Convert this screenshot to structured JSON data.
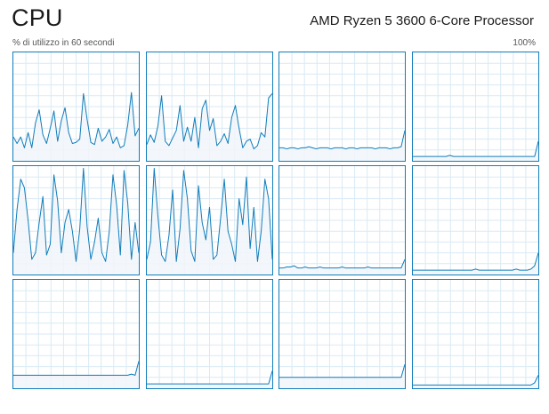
{
  "header": {
    "title": "CPU",
    "processor": "AMD Ryzen 5 3600 6-Core Processor",
    "utilization_label": "% di utilizzo in 60 secondi",
    "max_label": "100%"
  },
  "colors": {
    "line": "#117dbb",
    "fill": "#f1f6fa",
    "grid": "#d9eaf4",
    "border": "#117dbb"
  },
  "chart_data": {
    "type": "line",
    "layout": "grid",
    "grid_rows": 3,
    "grid_cols": 4,
    "ylim": [
      0,
      100
    ],
    "x_window_seconds": 60,
    "grid": true,
    "series": [
      {
        "values": [
          22,
          16,
          22,
          12,
          26,
          12,
          35,
          47,
          24,
          16,
          30,
          46,
          18,
          37,
          49,
          26,
          16,
          17,
          20,
          62,
          38,
          17,
          15,
          30,
          18,
          22,
          29,
          16,
          22,
          12,
          14,
          33,
          63,
          23,
          30
        ]
      },
      {
        "values": [
          15,
          24,
          17,
          32,
          60,
          18,
          14,
          21,
          28,
          51,
          18,
          31,
          18,
          40,
          12,
          48,
          56,
          28,
          39,
          14,
          18,
          25,
          16,
          40,
          51,
          30,
          12,
          18,
          20,
          11,
          14,
          26,
          22,
          58,
          62
        ]
      },
      {
        "values": [
          12,
          12,
          11,
          12,
          12,
          11,
          12,
          12,
          13,
          12,
          11,
          12,
          12,
          12,
          11,
          12,
          12,
          12,
          11,
          12,
          12,
          11,
          12,
          12,
          12,
          12,
          11,
          12,
          12,
          12,
          11,
          12,
          12,
          13,
          28
        ]
      },
      {
        "values": [
          4,
          4,
          4,
          4,
          4,
          4,
          4,
          4,
          4,
          4,
          5,
          4,
          4,
          4,
          4,
          4,
          4,
          4,
          4,
          4,
          4,
          4,
          4,
          4,
          4,
          4,
          4,
          4,
          4,
          4,
          4,
          4,
          4,
          4,
          18
        ]
      },
      {
        "values": [
          20,
          60,
          88,
          80,
          50,
          14,
          20,
          48,
          72,
          18,
          28,
          92,
          68,
          20,
          48,
          60,
          40,
          12,
          42,
          98,
          44,
          14,
          30,
          52,
          20,
          12,
          40,
          92,
          64,
          18,
          96,
          66,
          14,
          48,
          20
        ]
      },
      {
        "values": [
          14,
          30,
          98,
          54,
          18,
          12,
          36,
          78,
          12,
          42,
          96,
          70,
          22,
          12,
          82,
          48,
          32,
          62,
          14,
          18,
          52,
          88,
          40,
          28,
          12,
          70,
          46,
          90,
          24,
          62,
          12,
          40,
          88,
          70,
          14
        ]
      },
      {
        "values": [
          6,
          6,
          7,
          7,
          8,
          6,
          6,
          7,
          6,
          6,
          6,
          7,
          6,
          6,
          6,
          6,
          6,
          7,
          6,
          6,
          6,
          6,
          6,
          6,
          7,
          6,
          6,
          6,
          6,
          6,
          6,
          6,
          6,
          6,
          14
        ]
      },
      {
        "values": [
          4,
          4,
          4,
          4,
          4,
          4,
          4,
          4,
          4,
          4,
          4,
          4,
          4,
          4,
          4,
          4,
          4,
          5,
          4,
          4,
          4,
          4,
          4,
          4,
          4,
          4,
          4,
          4,
          5,
          4,
          4,
          4,
          5,
          8,
          20
        ]
      },
      {
        "values": [
          12,
          12,
          12,
          12,
          12,
          12,
          12,
          12,
          12,
          12,
          12,
          12,
          12,
          12,
          12,
          12,
          12,
          12,
          12,
          12,
          12,
          12,
          12,
          12,
          12,
          12,
          12,
          12,
          12,
          12,
          12,
          12,
          13,
          12,
          25
        ]
      },
      {
        "values": [
          4,
          4,
          4,
          4,
          4,
          4,
          4,
          4,
          4,
          4,
          4,
          4,
          4,
          4,
          4,
          4,
          4,
          4,
          4,
          4,
          4,
          4,
          4,
          4,
          4,
          4,
          4,
          4,
          4,
          4,
          4,
          4,
          4,
          4,
          16
        ]
      },
      {
        "values": [
          10,
          10,
          10,
          10,
          10,
          10,
          10,
          10,
          10,
          10,
          10,
          10,
          10,
          10,
          10,
          10,
          10,
          10,
          10,
          10,
          10,
          10,
          10,
          10,
          10,
          10,
          10,
          10,
          10,
          10,
          10,
          10,
          10,
          10,
          22
        ]
      },
      {
        "values": [
          3,
          3,
          3,
          3,
          3,
          3,
          3,
          3,
          3,
          3,
          3,
          3,
          3,
          3,
          3,
          3,
          3,
          3,
          3,
          3,
          3,
          3,
          3,
          3,
          3,
          3,
          3,
          3,
          3,
          3,
          3,
          3,
          3,
          5,
          12
        ]
      }
    ]
  }
}
